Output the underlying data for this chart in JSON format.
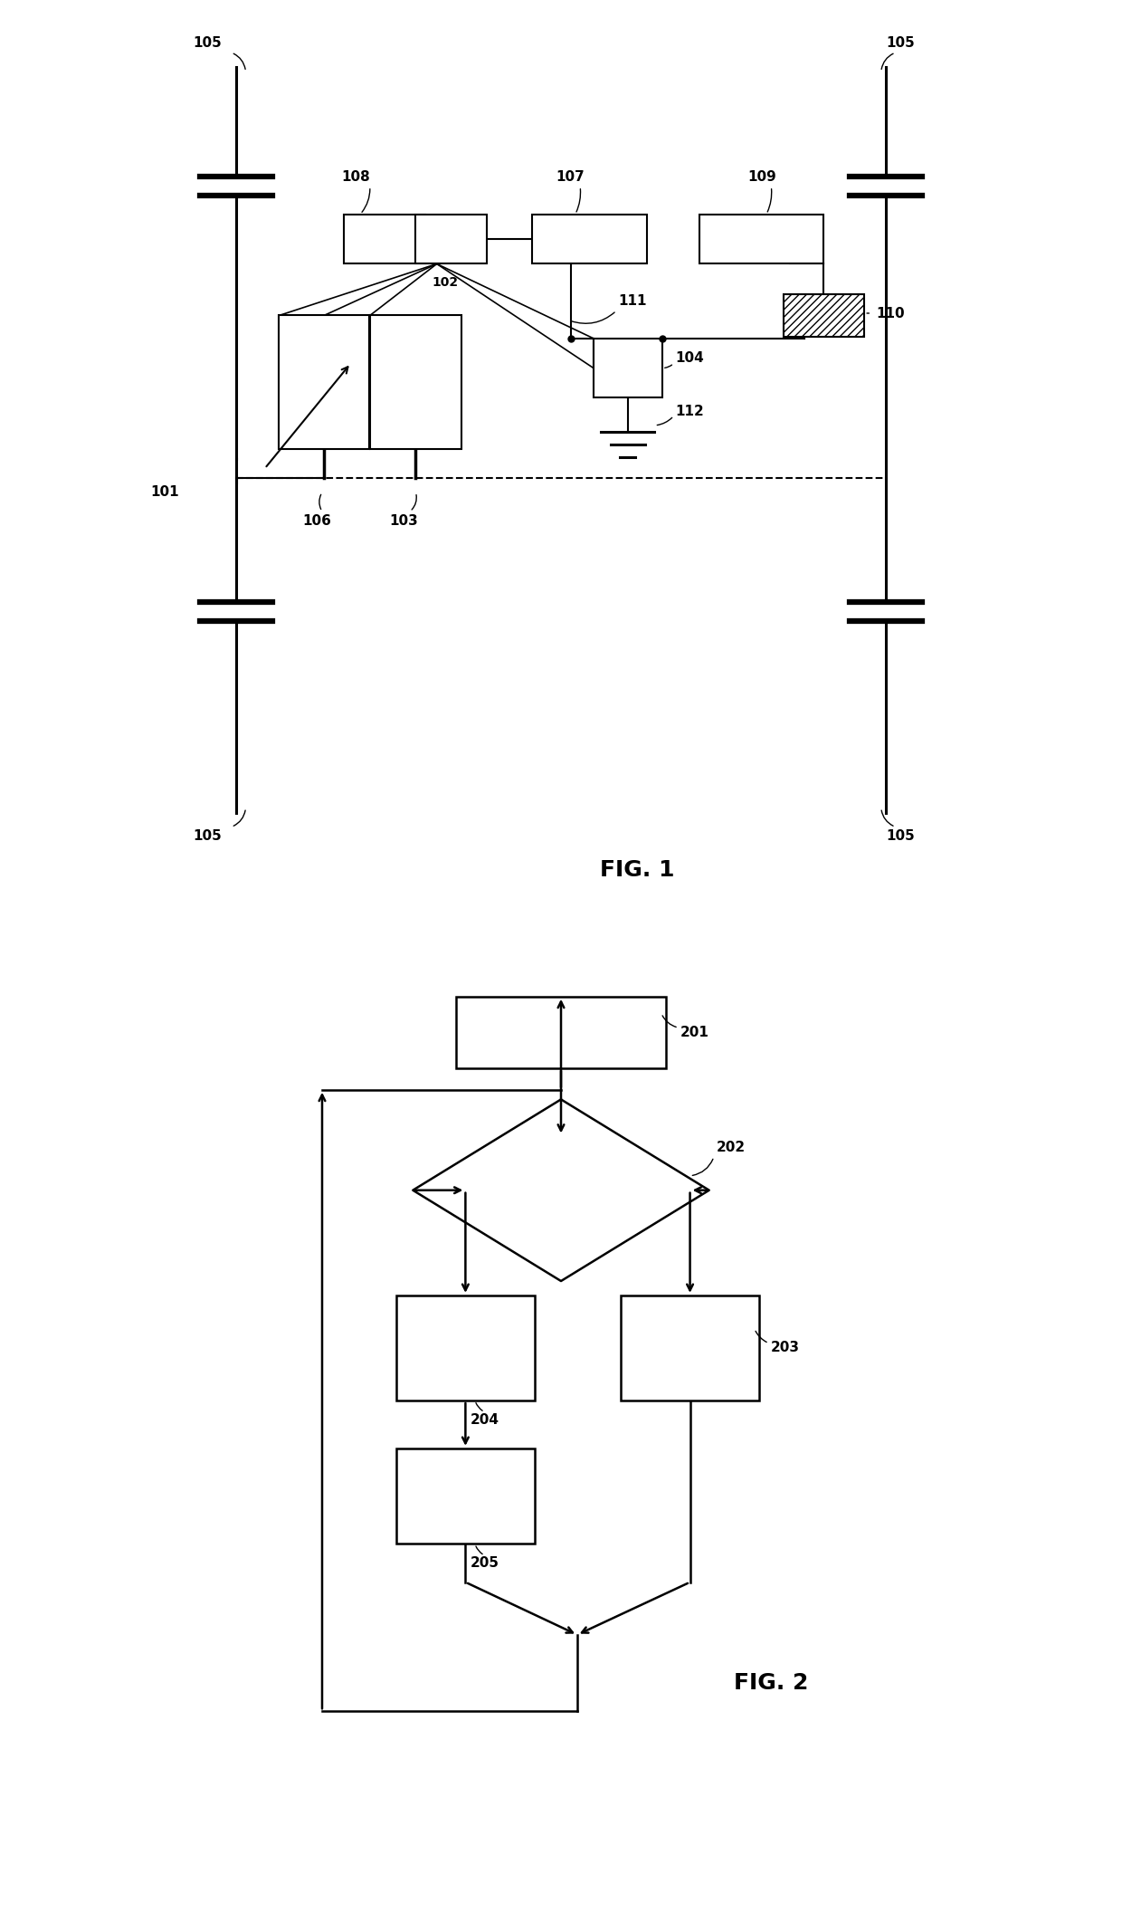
{
  "bg_color": "#ffffff",
  "line_color": "#000000",
  "fig1": {
    "title": "FIG. 1",
    "label_101": "101",
    "label_102": "102",
    "label_103": "103",
    "label_104": "104",
    "label_105": "105",
    "label_106": "106",
    "label_107": "107",
    "label_108": "108",
    "label_109": "109",
    "label_110": "110",
    "label_111": "111",
    "label_112": "112"
  },
  "fig2": {
    "title": "FIG. 2",
    "label_201": "201",
    "label_202": "202",
    "label_203": "203",
    "label_204": "204",
    "label_205": "205"
  }
}
